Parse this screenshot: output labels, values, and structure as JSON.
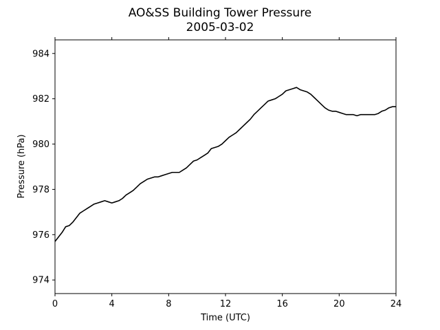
{
  "chart_data": {
    "type": "line",
    "title": "AO&SS Building Tower Pressure",
    "subtitle": "2005-03-02",
    "xlabel": "Time (UTC)",
    "ylabel": "Pressure (hPa)",
    "xlim": [
      0,
      24
    ],
    "ylim": [
      973.4,
      984.6
    ],
    "x_ticks": [
      0,
      4,
      8,
      12,
      16,
      20,
      24
    ],
    "y_ticks": [
      974,
      976,
      978,
      980,
      982,
      984
    ],
    "grid": false,
    "line_color": "#000000",
    "series": [
      {
        "x": [
          0.0,
          0.25,
          0.5,
          0.75,
          1.0,
          1.25,
          1.5,
          1.75,
          2.0,
          2.25,
          2.5,
          2.75,
          3.0,
          3.25,
          3.5,
          3.75,
          4.0,
          4.25,
          4.5,
          4.75,
          5.0,
          5.25,
          5.5,
          5.75,
          6.0,
          6.25,
          6.5,
          6.75,
          7.0,
          7.25,
          7.5,
          7.75,
          8.0,
          8.25,
          8.5,
          8.75,
          9.0,
          9.25,
          9.5,
          9.75,
          10.0,
          10.25,
          10.5,
          10.75,
          11.0,
          11.25,
          11.5,
          11.75,
          12.0,
          12.25,
          12.5,
          12.75,
          13.0,
          13.25,
          13.5,
          13.75,
          14.0,
          14.25,
          14.5,
          14.75,
          15.0,
          15.25,
          15.5,
          15.75,
          16.0,
          16.25,
          16.5,
          16.75,
          17.0,
          17.25,
          17.5,
          17.75,
          18.0,
          18.25,
          18.5,
          18.75,
          19.0,
          19.25,
          19.5,
          19.75,
          20.0,
          20.25,
          20.5,
          20.75,
          21.0,
          21.25,
          21.5,
          21.75,
          22.0,
          22.25,
          22.5,
          22.75,
          23.0,
          23.25,
          23.5,
          23.75,
          24.0
        ],
        "values": [
          975.7,
          975.9,
          976.1,
          976.35,
          976.4,
          976.55,
          976.75,
          976.95,
          977.05,
          977.15,
          977.25,
          977.35,
          977.4,
          977.45,
          977.5,
          977.45,
          977.4,
          977.45,
          977.5,
          977.6,
          977.75,
          977.85,
          977.95,
          978.1,
          978.25,
          978.35,
          978.45,
          978.5,
          978.55,
          978.55,
          978.6,
          978.65,
          978.7,
          978.75,
          978.75,
          978.75,
          978.85,
          978.95,
          979.1,
          979.25,
          979.3,
          979.4,
          979.5,
          979.6,
          979.8,
          979.85,
          979.9,
          980.0,
          980.15,
          980.3,
          980.4,
          980.5,
          980.65,
          980.8,
          980.95,
          981.1,
          981.3,
          981.45,
          981.6,
          981.75,
          981.9,
          981.95,
          982.0,
          982.1,
          982.2,
          982.35,
          982.4,
          982.45,
          982.5,
          982.4,
          982.35,
          982.3,
          982.2,
          982.05,
          981.9,
          981.75,
          981.6,
          981.5,
          981.45,
          981.45,
          981.4,
          981.35,
          981.3,
          981.3,
          981.3,
          981.25,
          981.3,
          981.3,
          981.3,
          981.3,
          981.3,
          981.35,
          981.45,
          981.5,
          981.6,
          981.65,
          981.65
        ]
      }
    ]
  }
}
